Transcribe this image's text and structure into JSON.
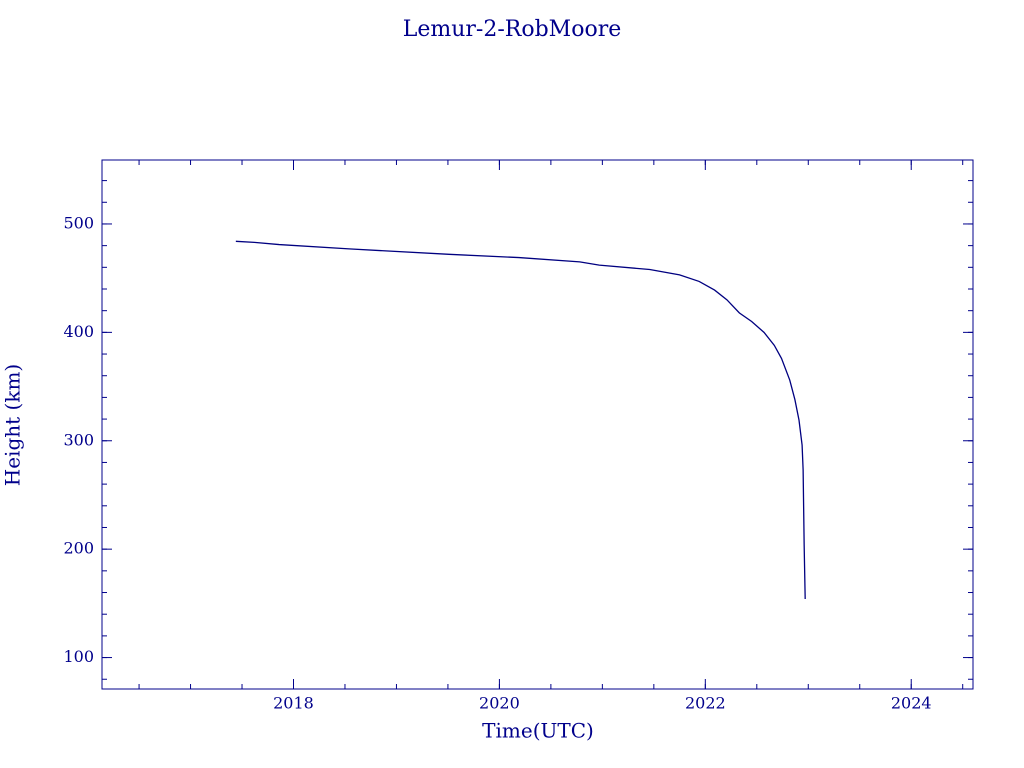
{
  "chart_data": {
    "type": "line",
    "title": "Lemur-2-RobMoore",
    "x_label": "Time(UTC)",
    "y_label": "Height (km)",
    "x": [
      2017.44,
      2017.62,
      2017.86,
      2018.54,
      2019.51,
      2020.19,
      2020.78,
      2020.97,
      2021.46,
      2021.75,
      2021.94,
      2022.09,
      2022.21,
      2022.33,
      2022.45,
      2022.57,
      2022.67,
      2022.74,
      2022.82,
      2022.87,
      2022.91,
      2022.94,
      2022.95,
      2022.96,
      2022.97
    ],
    "series": [
      {
        "color": "#000080",
        "values": [
          484,
          483,
          481,
          477,
          472,
          469,
          465,
          462,
          458,
          453,
          447,
          439,
          430,
          418,
          410,
          400,
          388,
          376,
          356,
          338,
          319,
          296,
          273,
          204,
          154
        ]
      }
    ],
    "xlim": [
      2016.14,
      2024.6
    ],
    "xticks": [
      2018,
      2020,
      2022,
      2024
    ],
    "xminor_step": 0.5,
    "ylim": [
      71,
      559
    ],
    "yticks": [
      100,
      200,
      300,
      400,
      500
    ],
    "yminor_step": 20,
    "axis_color": "#00008b"
  }
}
